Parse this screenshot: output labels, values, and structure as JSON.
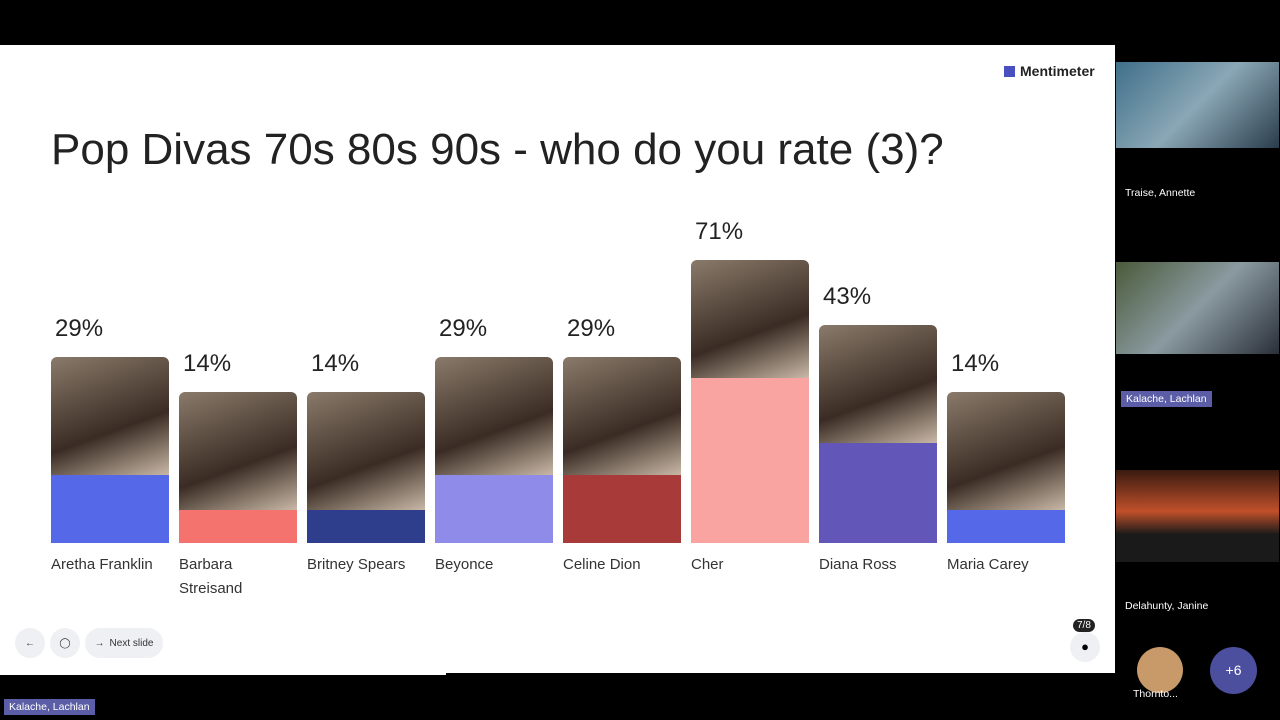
{
  "slide": {
    "brand": "Mentimeter",
    "next_button": "Next slide",
    "counter": "7/8"
  },
  "chart_data": {
    "type": "bar",
    "title": "Pop Divas 70s 80s 90s - who do you rate (3)?",
    "categories": [
      "Aretha Franklin",
      "Barbara Streisand",
      "Britney Spears",
      "Beyonce",
      "Celine Dion",
      "Cher",
      "Diana Ross",
      "Maria Carey"
    ],
    "values": [
      29,
      14,
      14,
      29,
      29,
      71,
      43,
      14
    ],
    "value_labels": [
      "29%",
      "14%",
      "14%",
      "29%",
      "29%",
      "71%",
      "43%",
      "14%"
    ],
    "colors": [
      "#5468e8",
      "#f4736e",
      "#2f3e8c",
      "#8e8ce8",
      "#a83a3a",
      "#f9a4a0",
      "#6257b8",
      "#5468e8"
    ]
  },
  "participants": [
    "Traise, Annette",
    "Kalache, Lachlan",
    "Delahunty, Janine",
    "Thornto..."
  ],
  "more_participants": "+6",
  "active_speaker": "Kalache, Lachlan"
}
